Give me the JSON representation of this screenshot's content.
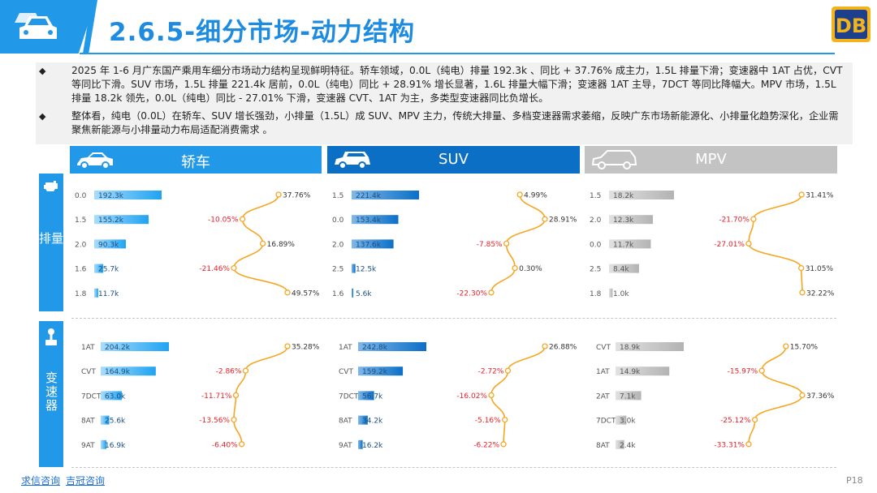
{
  "header": {
    "title": "2.6.5-细分市场-动力结构",
    "logo_text": "DB"
  },
  "bullets": [
    "2025 年 1-6 月广东国产乘用车细分市场动力结构呈现鲜明特征。轿车领域，0.0L（纯电）排量 192.3k 、同比 + 37.76% 成主力，1.5L 排量下滑；变速器中 1AT 占优，CVT 等同比下滑。SUV 市场，1.5L 排量 221.4k 居前，0.0L（纯电）同比 + 28.91% 增长显著，1.6L 排量大幅下滑；变速器 1AT 主导，7DCT 等同比降幅大。MPV 市场，1.5L 排量 18.2k 领先，0.0L（纯电）同比 - 27.01% 下滑，变速器 CVT、1AT 为主，多类型变速器同比负增长。",
    "整体看，纯电（0.0L）在轿车、SUV 增长强劲，小排量（1.5L）成 SUV、MPV 主力，传统大排量、多档变速器需求萎缩，反映广东市场新能源化、小排量化趋势深化，企业需聚焦新能源与小排量动力布局适配消费需求 。"
  ],
  "categories": [
    "轿车",
    "SUV",
    "MPV"
  ],
  "row_groups": [
    "排量",
    "变速器"
  ],
  "colors": {
    "accent": "#2199e8",
    "mpv_header": "#c3c3c3",
    "mpv_bar": "#bdbdbd",
    "line": "#f5a623",
    "negative": "#e8202a"
  },
  "chart_data": [
    {
      "type": "bar",
      "segment": "轿车",
      "group": "排量",
      "categories": [
        "0.0",
        "1.5",
        "2.0",
        "1.6",
        "1.8"
      ],
      "series": [
        {
          "values": [
            192.3,
            155.2,
            90.3,
            25.7,
            11.7
          ],
          "labels": [
            "192.3k",
            "155.2k",
            "90.3k",
            "25.7k",
            "11.7k"
          ]
        }
      ],
      "yoy": [
        37.76,
        -10.05,
        16.89,
        -21.46,
        49.57
      ],
      "yoy_labels": [
        "37.76%",
        "-10.05%",
        "16.89%",
        "-21.46%",
        "49.57%"
      ]
    },
    {
      "type": "bar",
      "segment": "SUV",
      "group": "排量",
      "categories": [
        "1.5",
        "0.0",
        "2.0",
        "2.5",
        "1.6"
      ],
      "series": [
        {
          "values": [
            221.4,
            153.4,
            137.6,
            12.5,
            5.6
          ],
          "labels": [
            "221.4k",
            "153.4k",
            "137.6k",
            "12.5k",
            "5.6k"
          ]
        }
      ],
      "yoy": [
        4.99,
        28.91,
        -7.85,
        0.3,
        -22.3
      ],
      "yoy_labels": [
        "4.99%",
        "28.91%",
        "-7.85%",
        "0.30%",
        "-22.30%"
      ]
    },
    {
      "type": "bar",
      "segment": "MPV",
      "group": "排量",
      "categories": [
        "1.5",
        "2.0",
        "0.0",
        "2.5",
        "1.8"
      ],
      "series": [
        {
          "values": [
            18.2,
            12.3,
            11.7,
            8.4,
            1.0
          ],
          "labels": [
            "18.2k",
            "12.3k",
            "11.7k",
            "8.4k",
            "1.0k"
          ]
        }
      ],
      "yoy": [
        31.41,
        -21.7,
        -27.01,
        31.05,
        32.22
      ],
      "yoy_labels": [
        "31.41%",
        "-21.70%",
        "-27.01%",
        "31.05%",
        "32.22%"
      ]
    },
    {
      "type": "bar",
      "segment": "轿车",
      "group": "变速器",
      "categories": [
        "1AT",
        "CVT",
        "7DCT",
        "8AT",
        "9AT"
      ],
      "series": [
        {
          "values": [
            204.2,
            164.9,
            63.0,
            25.6,
            16.9
          ],
          "labels": [
            "204.2k",
            "164.9k",
            "63.0k",
            "25.6k",
            "16.9k"
          ]
        }
      ],
      "yoy": [
        35.28,
        -2.86,
        -11.71,
        -13.56,
        -6.4
      ],
      "yoy_labels": [
        "35.28%",
        "-2.86%",
        "-11.71%",
        "-13.56%",
        "-6.40%"
      ]
    },
    {
      "type": "bar",
      "segment": "SUV",
      "group": "变速器",
      "categories": [
        "1AT",
        "CVT",
        "7DCT",
        "8AT",
        "9AT"
      ],
      "series": [
        {
          "values": [
            242.8,
            159.2,
            56.7,
            34.2,
            16.2
          ],
          "labels": [
            "242.8k",
            "159.2k",
            "56.7k",
            "34.2k",
            "16.2k"
          ]
        }
      ],
      "yoy": [
        26.88,
        -2.72,
        -16.02,
        -5.16,
        -6.22
      ],
      "yoy_labels": [
        "26.88%",
        "-2.72%",
        "-16.02%",
        "-5.16%",
        "-6.22%"
      ]
    },
    {
      "type": "bar",
      "segment": "MPV",
      "group": "变速器",
      "categories": [
        "CVT",
        "1AT",
        "2AT",
        "7DCT",
        "8AT"
      ],
      "series": [
        {
          "values": [
            18.9,
            14.9,
            7.1,
            3.0,
            2.4
          ],
          "labels": [
            "18.9k",
            "14.9k",
            "7.1k",
            "3.0k",
            "2.4k"
          ]
        }
      ],
      "yoy": [
        15.7,
        -15.97,
        37.36,
        -25.12,
        -33.31
      ],
      "yoy_labels": [
        "15.70%",
        "-15.97%",
        "37.36%",
        "-25.12%",
        "-33.31%"
      ]
    }
  ],
  "footer": {
    "link1": "求信咨询",
    "link2": "吉冠咨询",
    "page": "P18"
  }
}
